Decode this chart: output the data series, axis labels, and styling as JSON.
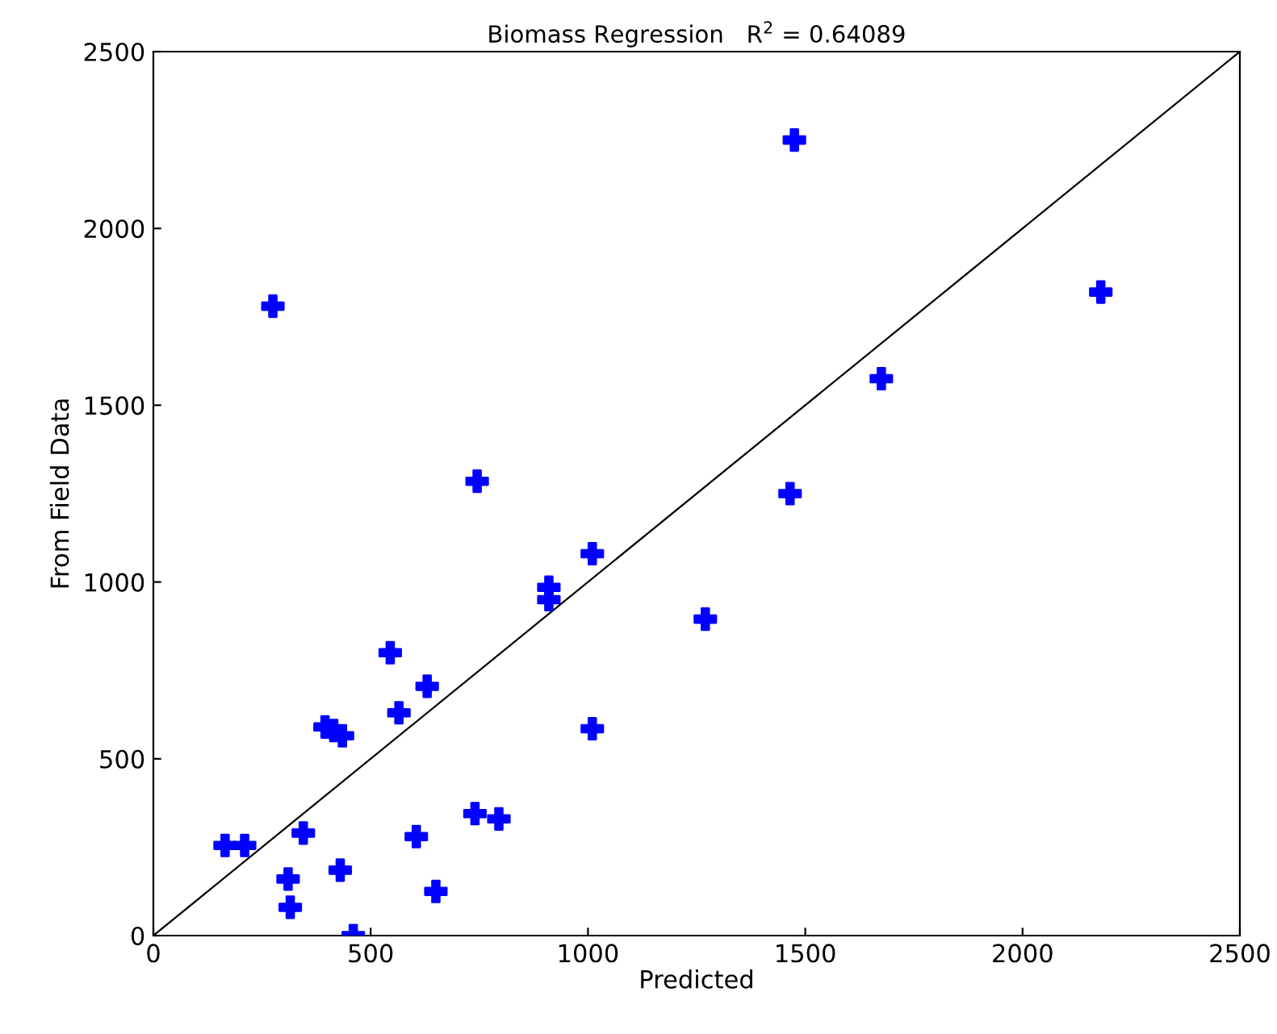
{
  "chart_data": {
    "type": "scatter",
    "title": "Biomass Regression   R$^{2}$ = 0.64089",
    "xlabel": "Predicted",
    "ylabel": "From Field Data",
    "xlim": [
      0,
      2500
    ],
    "ylim": [
      0,
      2500
    ],
    "xticks": [
      0,
      500,
      1000,
      1500,
      2000,
      2500
    ],
    "yticks": [
      0,
      500,
      1000,
      1500,
      2000,
      2500
    ],
    "grid": false,
    "marker": "cross",
    "series": [
      {
        "color": "#0000ff",
        "x": [
          165,
          210,
          345,
          310,
          315,
          430,
          460,
          275,
          395,
          415,
          435,
          545,
          565,
          630,
          605,
          650,
          740,
          795,
          745,
          910,
          910,
          1010,
          1010,
          1270,
          1465,
          1475,
          1675,
          2180
        ],
        "values": [
          255,
          255,
          290,
          160,
          80,
          185,
          0,
          1780,
          590,
          580,
          565,
          800,
          630,
          705,
          280,
          125,
          345,
          330,
          1285,
          985,
          950,
          1080,
          585,
          895,
          1250,
          2250,
          1575,
          1820
        ]
      },
      {
        "type": "line",
        "color": "#000000",
        "marker": "none",
        "line_style": "solid",
        "x": [
          0,
          2500
        ],
        "values": [
          0,
          2500
        ]
      }
    ]
  }
}
